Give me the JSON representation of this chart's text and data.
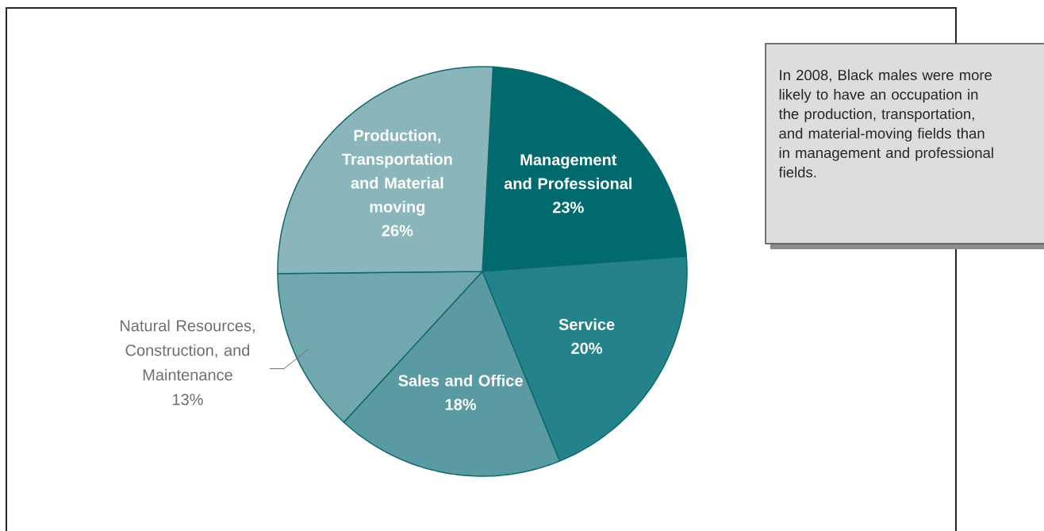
{
  "chart_data": {
    "type": "pie",
    "categories": [
      "Management and Professional",
      "Service",
      "Sales and Office",
      "Natural Resources, Construction, and Maintenance",
      "Production, Transportation and Material moving"
    ],
    "values": [
      23,
      20,
      18,
      13,
      26
    ],
    "value_labels": [
      "23%",
      "20%",
      "18%",
      "13%",
      "26%"
    ],
    "colors": [
      "#006a6e",
      "#23828a",
      "#5a9ba3",
      "#70a8ad",
      "#8ab6bb"
    ],
    "annotations": [
      "In 2008, Black males were more likely to have an occupation in the production, transportation, and material-moving fields than in management and professional fields."
    ]
  }
}
